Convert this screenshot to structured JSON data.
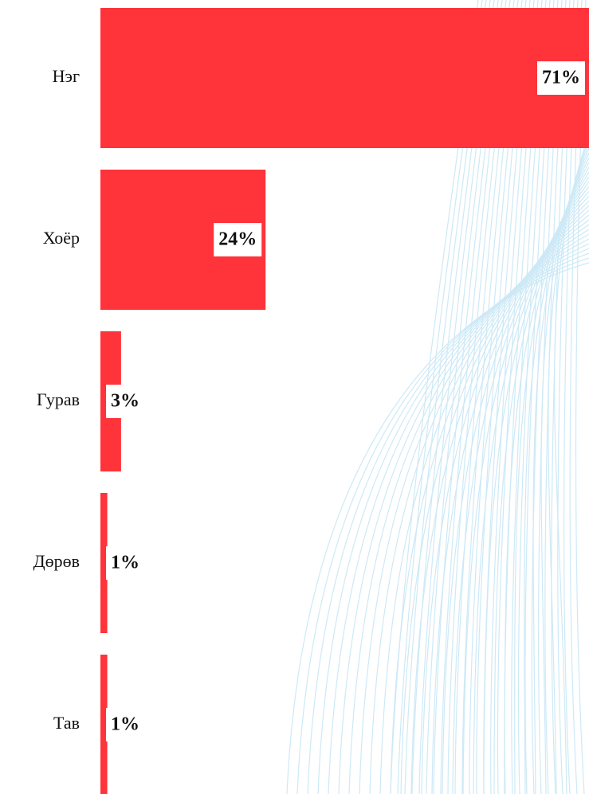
{
  "chart_data": {
    "type": "bar",
    "orientation": "horizontal",
    "categories": [
      "Нэг",
      "Хоёр",
      "Гурав",
      "Дөрөв",
      "Тав"
    ],
    "values": [
      71,
      24,
      3,
      1,
      1
    ],
    "value_labels": [
      "71%",
      "24%",
      "3%",
      "1%",
      "1%"
    ],
    "color": "#ff333a"
  }
}
